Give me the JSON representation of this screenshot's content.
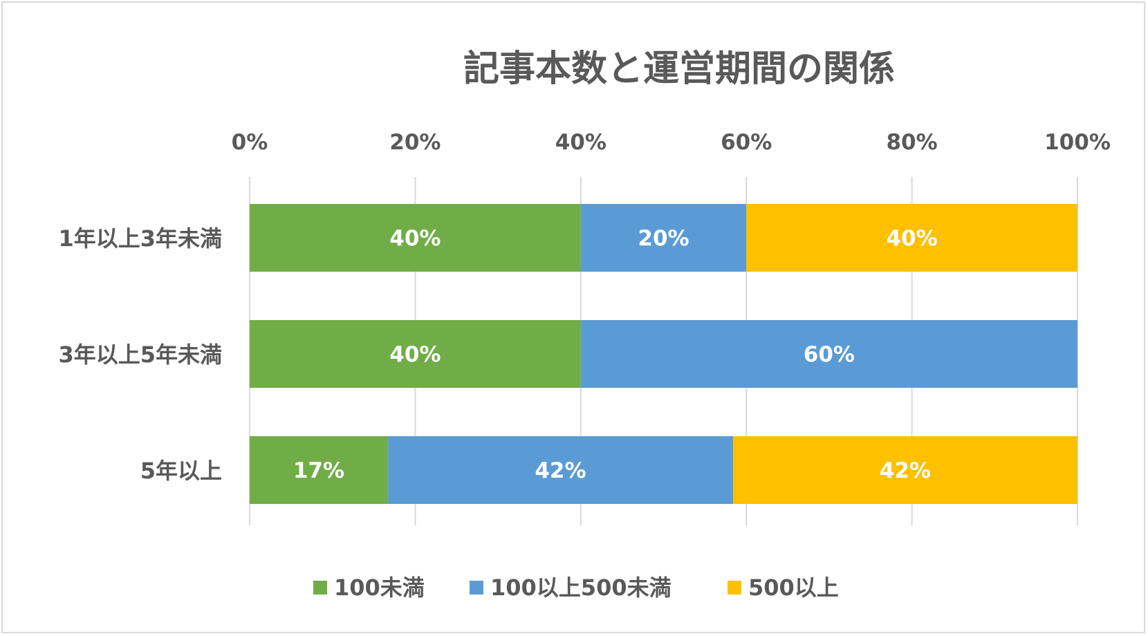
{
  "chart_data": {
    "type": "bar",
    "orientation": "horizontal",
    "stacking": "percent",
    "title": "記事本数と運営期間の関係",
    "categories": [
      "1年以上3年未満",
      "3年以上5年未満",
      "5年以上"
    ],
    "series": [
      {
        "name": "100未満",
        "color": "#70AD47",
        "values": [
          40,
          40,
          16.7
        ],
        "labels": [
          "40%",
          "40%",
          "17%"
        ]
      },
      {
        "name": "100以上500未満",
        "color": "#5B9BD5",
        "values": [
          20,
          60,
          41.7
        ],
        "labels": [
          "20%",
          "60%",
          "42%"
        ]
      },
      {
        "name": "500以上",
        "color": "#FFC000",
        "values": [
          40,
          0,
          41.6
        ],
        "labels": [
          "40%",
          "",
          "42%"
        ]
      }
    ],
    "xlim": [
      0,
      100
    ],
    "x_ticks": [
      0,
      20,
      40,
      60,
      80,
      100
    ],
    "x_tick_labels": [
      "0%",
      "20%",
      "40%",
      "60%",
      "80%",
      "100%"
    ],
    "x_axis_position": "top",
    "grid": true,
    "legend": "bottom",
    "xlabel": "",
    "ylabel": ""
  }
}
